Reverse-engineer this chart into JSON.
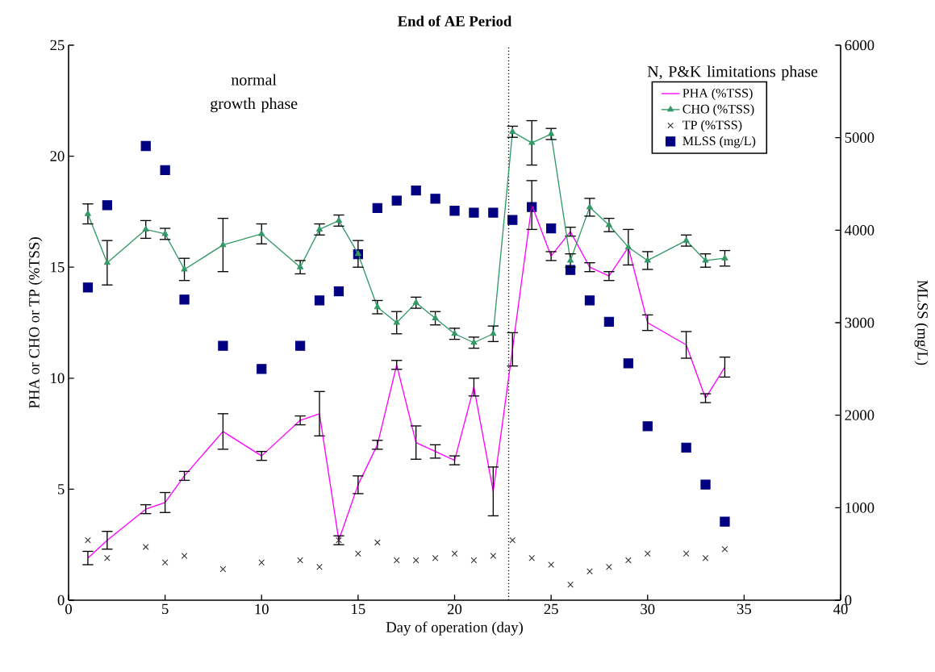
{
  "chart_data": {
    "type": "line",
    "title": "End of AE Period",
    "xlabel": "Day of operation (day)",
    "ylabel": "PHA or CHO or TP (%TSS)",
    "y2label": "MLSS (mg/L)",
    "x": [
      1,
      2,
      4,
      5,
      6,
      8,
      10,
      12,
      13,
      14,
      15,
      16,
      17,
      18,
      19,
      20,
      21,
      22,
      23,
      24,
      25,
      26,
      27,
      28,
      29,
      30,
      32,
      33,
      34
    ],
    "series": [
      {
        "name": "PHA (%TSS)",
        "color": "#ff00ff",
        "marker": "none",
        "values": [
          1.9,
          2.7,
          4.1,
          4.4,
          5.6,
          7.6,
          6.5,
          8.1,
          8.4,
          2.7,
          5.2,
          7.0,
          10.6,
          7.1,
          6.7,
          6.3,
          9.6,
          4.9,
          11.3,
          17.8,
          15.5,
          16.6,
          15.0,
          14.6,
          15.9,
          12.5,
          11.5,
          9.1,
          10.5
        ],
        "errors": [
          0.3,
          0.4,
          0.2,
          0.45,
          0.2,
          0.8,
          0.2,
          0.2,
          1.0,
          0.2,
          0.4,
          0.2,
          0.2,
          0.75,
          0.3,
          0.2,
          0.4,
          1.1,
          0.75,
          1.1,
          0.2,
          0.2,
          0.2,
          0.2,
          null,
          0.35,
          0.6,
          0.2,
          0.45
        ]
      },
      {
        "name": "CHO (%TSS)",
        "color": "#339966",
        "marker": "triangle",
        "values": [
          17.4,
          15.2,
          16.7,
          16.5,
          14.9,
          16.0,
          16.5,
          15.0,
          16.7,
          17.1,
          15.6,
          13.2,
          12.5,
          13.4,
          12.7,
          12.0,
          11.6,
          12.0,
          21.1,
          20.6,
          21.0,
          15.3,
          17.7,
          16.9,
          15.9,
          15.3,
          16.2,
          15.3,
          15.4
        ],
        "errors": [
          0.45,
          1.0,
          0.4,
          0.25,
          0.5,
          1.2,
          0.45,
          0.3,
          0.25,
          0.25,
          0.6,
          0.3,
          0.5,
          0.25,
          0.3,
          0.25,
          0.25,
          0.35,
          0.25,
          1.0,
          0.25,
          0.3,
          0.4,
          0.3,
          0.8,
          0.4,
          0.25,
          0.3,
          0.35
        ]
      },
      {
        "name": "TP (%TSS)",
        "type": "scatter",
        "color": "#333333",
        "marker": "cross",
        "values": [
          2.7,
          1.9,
          2.4,
          1.7,
          2.0,
          1.4,
          1.7,
          1.8,
          1.5,
          2.7,
          2.1,
          2.6,
          1.8,
          1.8,
          1.9,
          2.1,
          1.8,
          2.0,
          2.7,
          1.9,
          1.6,
          0.7,
          1.3,
          1.5,
          1.8,
          2.1,
          2.1,
          1.9,
          2.3
        ]
      },
      {
        "name": "MLSS (mg/L)",
        "type": "scatter",
        "axis": "y2",
        "color": "#000080",
        "marker": "square",
        "values": [
          3380,
          4270,
          4910,
          4650,
          3250,
          2750,
          2500,
          2750,
          3240,
          3340,
          3740,
          4240,
          4320,
          4430,
          4340,
          4210,
          4190,
          4190,
          4110,
          4250,
          4020,
          3570,
          3240,
          3010,
          2560,
          1880,
          1650,
          1250,
          850
        ]
      }
    ],
    "xlim": [
      0,
      40
    ],
    "xticks": [
      0,
      5,
      10,
      15,
      20,
      25,
      30,
      35,
      40
    ],
    "ylim": [
      0,
      25
    ],
    "yticks": [
      0,
      5,
      10,
      15,
      20,
      25
    ],
    "y2lim": [
      0,
      6000
    ],
    "y2ticks": [
      0,
      1000,
      2000,
      3000,
      4000,
      5000,
      6000
    ],
    "ref_lines": [
      {
        "axis": "x",
        "value": 22.8,
        "line_style": "dotted",
        "color": "#000000"
      }
    ],
    "annotations": [
      "normal growth phase",
      "N, P&K limitations phase"
    ],
    "legend": "top right"
  }
}
